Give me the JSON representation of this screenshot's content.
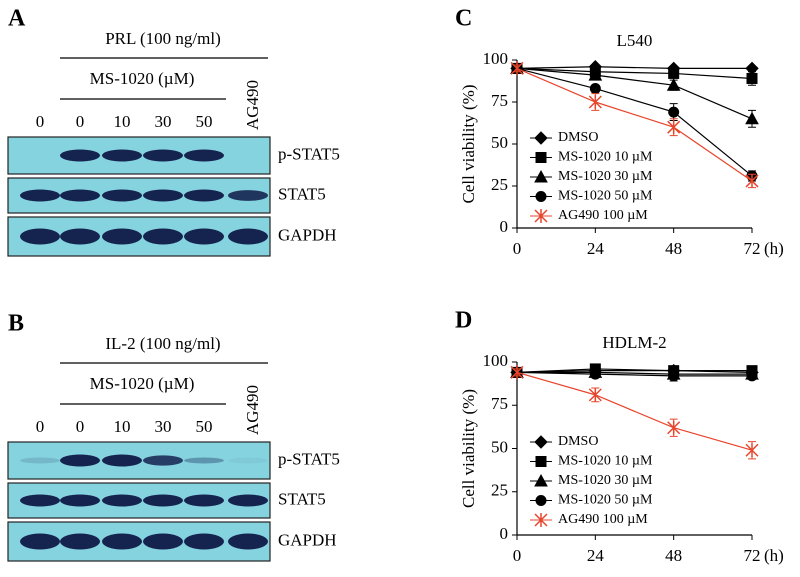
{
  "panels": [
    {
      "label": "A",
      "treatment": "PRL (100 ng/ml)",
      "drug": "MS-1020 (µM)",
      "lanes": [
        "0",
        "0",
        "10",
        "30",
        "50",
        "AG490"
      ],
      "blots": [
        "p-STAT5",
        "STAT5",
        "GAPDH"
      ]
    },
    {
      "label": "B",
      "treatment": "IL-2 (100 ng/ml)",
      "drug": "MS-1020 (µM)",
      "lanes": [
        "0",
        "0",
        "10",
        "30",
        "50",
        "AG490"
      ],
      "blots": [
        "p-STAT5",
        "STAT5",
        "GAPDH"
      ]
    }
  ],
  "chart_data": [
    {
      "type": "line",
      "panel": "C",
      "title": "L540",
      "ylabel": "Cell viability (%)",
      "xlabel": "(h)",
      "x": [
        0,
        24,
        48,
        72
      ],
      "xlim": [
        0,
        72
      ],
      "xticks": [
        0,
        24,
        48,
        72
      ],
      "ylim": [
        0,
        100
      ],
      "yticks": [
        0,
        25,
        50,
        75,
        100
      ],
      "series": [
        {
          "name": "DMSO",
          "color": "#000000",
          "marker": "diamond",
          "values": [
            95,
            96,
            95,
            95
          ],
          "errors": [
            1,
            1,
            1,
            1
          ]
        },
        {
          "name": "MS-1020 10 µM",
          "color": "#000000",
          "marker": "square",
          "values": [
            95,
            93,
            92,
            89
          ],
          "errors": [
            1,
            2,
            2,
            4
          ]
        },
        {
          "name": "MS-1020 30 µM",
          "color": "#000000",
          "marker": "triangle",
          "values": [
            95,
            91,
            85,
            65
          ],
          "errors": [
            1,
            2,
            3,
            5
          ]
        },
        {
          "name": "MS-1020 50 µM",
          "color": "#000000",
          "marker": "circle",
          "values": [
            95,
            83,
            69,
            31
          ],
          "errors": [
            1,
            2,
            5,
            3
          ]
        },
        {
          "name": "AG490 100 µM",
          "color": "#e8452c",
          "marker": "star",
          "values": [
            95,
            75,
            60,
            28
          ],
          "errors": [
            2,
            5,
            5,
            4
          ]
        }
      ]
    },
    {
      "type": "line",
      "panel": "D",
      "title": "HDLM-2",
      "ylabel": "Cell viability (%)",
      "xlabel": "(h)",
      "x": [
        0,
        24,
        48,
        72
      ],
      "xlim": [
        0,
        72
      ],
      "xticks": [
        0,
        24,
        48,
        72
      ],
      "ylim": [
        0,
        100
      ],
      "yticks": [
        0,
        25,
        50,
        75,
        100
      ],
      "series": [
        {
          "name": "DMSO",
          "color": "#000000",
          "marker": "diamond",
          "values": [
            94,
            95,
            95,
            94
          ],
          "errors": [
            1,
            2,
            2,
            1
          ]
        },
        {
          "name": "MS-1020 10 µM",
          "color": "#000000",
          "marker": "square",
          "values": [
            94,
            96,
            95,
            95
          ],
          "errors": [
            1,
            2,
            2,
            1
          ]
        },
        {
          "name": "MS-1020 30 µM",
          "color": "#000000",
          "marker": "triangle",
          "values": [
            94,
            94,
            93,
            93
          ],
          "errors": [
            1,
            2,
            2,
            1
          ]
        },
        {
          "name": "MS-1020 50 µM",
          "color": "#000000",
          "marker": "circle",
          "values": [
            94,
            93,
            92,
            92
          ],
          "errors": [
            1,
            2,
            3,
            1
          ]
        },
        {
          "name": "AG490 100 µM",
          "color": "#e8452c",
          "marker": "star",
          "values": [
            94,
            81,
            62,
            49
          ],
          "errors": [
            2,
            4,
            5,
            5
          ]
        }
      ]
    }
  ]
}
